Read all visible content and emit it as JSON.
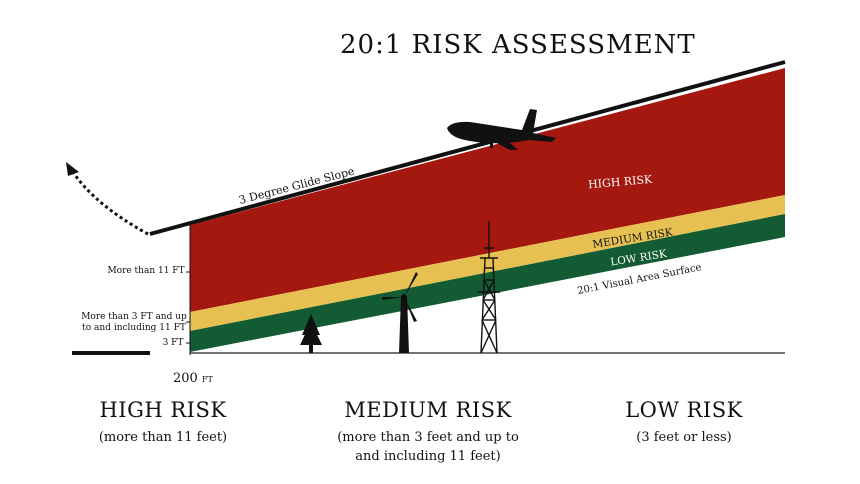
{
  "title": "20:1 RISK ASSESSMENT",
  "diagram": {
    "glide_slope_label": "3 Degree Glide Slope",
    "visual_area_label": "20:1 Visual Area Surface",
    "zone_labels": {
      "high": "HIGH RISK",
      "medium": "MEDIUM RISK",
      "low": "LOW RISK"
    },
    "side_labels": {
      "high": "More than 11 FT",
      "medium_line1": "More than 3 FT and up",
      "medium_line2": "to and including 11 FT",
      "low": "3 FT"
    },
    "distance_value": "200",
    "distance_unit": "FT",
    "colors": {
      "high": "#a5180f",
      "medium": "#e6c152",
      "low": "#135c33",
      "ground": "#111111"
    },
    "icons": [
      "airplane-icon",
      "tree-icon",
      "wind-turbine-icon",
      "tower-icon"
    ]
  },
  "legend": {
    "high": {
      "heading": "HIGH RISK",
      "desc": "(more than 11 feet)"
    },
    "medium": {
      "heading": "MEDIUM RISK",
      "desc_line1": "(more than 3 feet and up to",
      "desc_line2": "and including 11 feet)"
    },
    "low": {
      "heading": "LOW RISK",
      "desc": "(3 feet or less)"
    }
  }
}
